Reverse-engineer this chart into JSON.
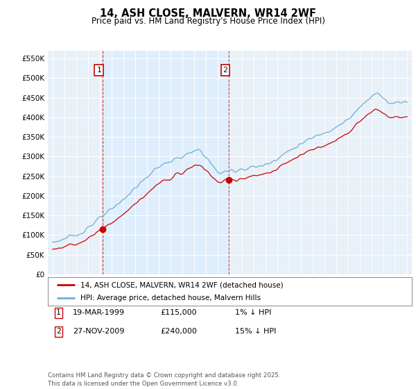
{
  "title": "14, ASH CLOSE, MALVERN, WR14 2WF",
  "subtitle": "Price paid vs. HM Land Registry's House Price Index (HPI)",
  "ylim": [
    0,
    570000
  ],
  "yticks": [
    0,
    50000,
    100000,
    150000,
    200000,
    250000,
    300000,
    350000,
    400000,
    450000,
    500000,
    550000
  ],
  "hpi_color": "#6baed6",
  "price_color": "#cc0000",
  "sale1_date": 1999.22,
  "sale1_price": 115000,
  "sale2_date": 2009.91,
  "sale2_price": 240000,
  "vline1_date": 1999.22,
  "vline2_date": 2009.91,
  "shade_color": "#ddeeff",
  "legend_house": "14, ASH CLOSE, MALVERN, WR14 2WF (detached house)",
  "legend_hpi": "HPI: Average price, detached house, Malvern Hills",
  "footnote": "Contains HM Land Registry data © Crown copyright and database right 2025.\nThis data is licensed under the Open Government Licence v3.0.",
  "background_color": "#e8f0f8"
}
